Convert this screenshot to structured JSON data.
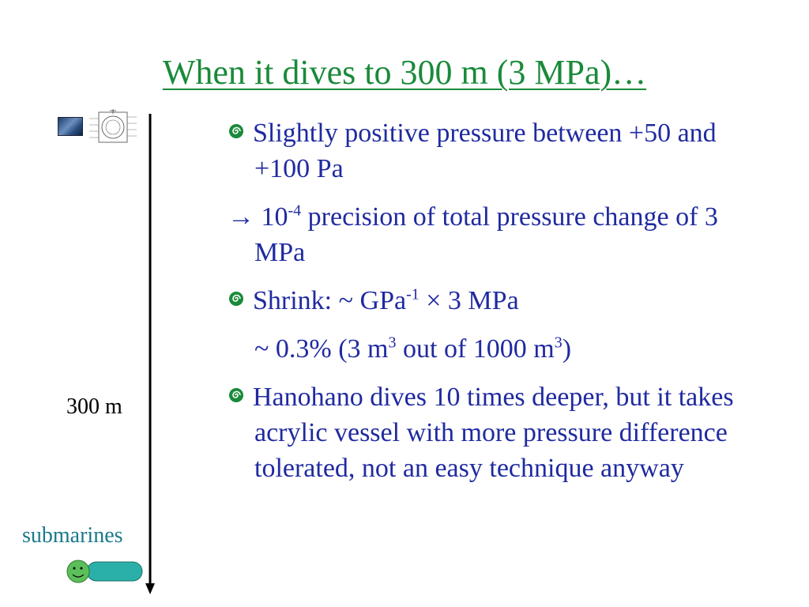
{
  "slide": {
    "title": "When it dives to 300 m (3 MPa)…",
    "depth_label": "300 m",
    "submarine_label": "submarines",
    "colors": {
      "title": "#1a8a3a",
      "body_text": "#1f2aa0",
      "submarine_label": "#1a7a8a",
      "submarine_fill": "#2ab0a8"
    },
    "bullet_icon": "spiral-bullet-icon",
    "body": [
      {
        "id": "p1",
        "bullet": true,
        "text": "Slightly positive pressure between +50 and +100 Pa"
      },
      {
        "id": "p2",
        "bullet": false,
        "prefix": "→ 10",
        "sup": "-4",
        "text": " precision of total pressure change of 3 MPa"
      },
      {
        "id": "p3",
        "bullet": true,
        "text_a": "Shrink: ~ GPa",
        "sup": "-1",
        "text_b": " × 3 MPa"
      },
      {
        "id": "p4",
        "bullet": false,
        "text_a": "~ 0.3% (3 m",
        "sup_a": "3",
        "text_b": " out of 1000 m",
        "sup_b": "3",
        "text_c": ")"
      },
      {
        "id": "p5",
        "bullet": true,
        "text": "Hanohano dives 10 times deeper, but it takes acrylic vessel with more pressure difference tolerated, not an easy technique anyway"
      }
    ]
  }
}
